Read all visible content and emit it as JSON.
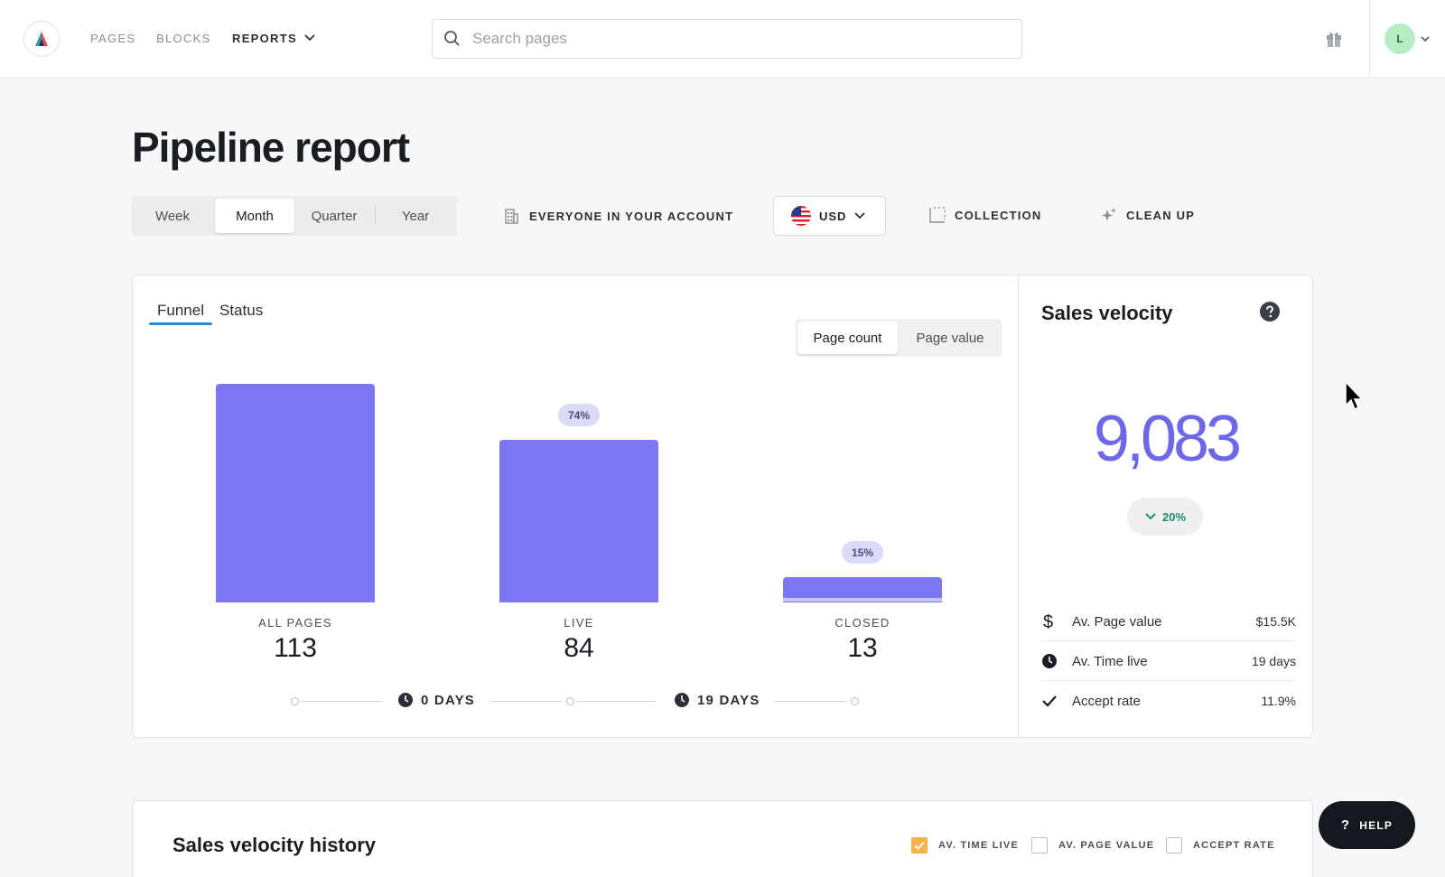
{
  "nav": {
    "items": [
      {
        "label": "PAGES"
      },
      {
        "label": "BLOCKS"
      },
      {
        "label": "REPORTS"
      }
    ],
    "search_placeholder": "Search pages",
    "avatar_initial": "L"
  },
  "page": {
    "title": "Pipeline report"
  },
  "toolbar": {
    "periods": [
      {
        "label": "Week",
        "active": false
      },
      {
        "label": "Month",
        "active": true
      },
      {
        "label": "Quarter",
        "active": false
      },
      {
        "label": "Year",
        "active": false
      }
    ],
    "account_filter": "EVERYONE IN YOUR ACCOUNT",
    "currency": "USD",
    "collection": "COLLECTION",
    "cleanup": "CLEAN UP"
  },
  "funnel_card": {
    "tabs": [
      {
        "label": "Funnel",
        "active": true
      },
      {
        "label": "Status",
        "active": false
      }
    ],
    "toggle": [
      {
        "label": "Page count",
        "active": true
      },
      {
        "label": "Page value",
        "active": false
      }
    ],
    "timeline": [
      {
        "label": "0 DAYS"
      },
      {
        "label": "19 DAYS"
      }
    ]
  },
  "chart_data": {
    "type": "bar",
    "categories": [
      "ALL PAGES",
      "LIVE",
      "CLOSED"
    ],
    "values": [
      113,
      84,
      13
    ],
    "conversion_labels": [
      "",
      "74%",
      "15%"
    ],
    "color": "#7b76f1"
  },
  "sales_velocity": {
    "title": "Sales velocity",
    "value": "9,083",
    "change": "20%",
    "change_direction": "down",
    "metrics": [
      {
        "icon": "dollar-icon",
        "label": "Av. Page value",
        "value": "$15.5K"
      },
      {
        "icon": "clock-icon",
        "label": "Av. Time live",
        "value": "19 days"
      },
      {
        "icon": "check-icon",
        "label": "Accept rate",
        "value": "11.9%"
      }
    ]
  },
  "history": {
    "title": "Sales velocity history",
    "checkboxes": [
      {
        "label": "AV. TIME LIVE",
        "checked": true
      },
      {
        "label": "AV. PAGE VALUE",
        "checked": false
      },
      {
        "label": "ACCEPT RATE",
        "checked": false
      }
    ]
  },
  "help": {
    "label": "HELP"
  },
  "colors": {
    "accent": "#7b76f1",
    "velocity": "#6d68e8",
    "positive": "#1f8a6e",
    "tab_underline": "#2d86d9",
    "checkbox": "#f4b24a"
  }
}
